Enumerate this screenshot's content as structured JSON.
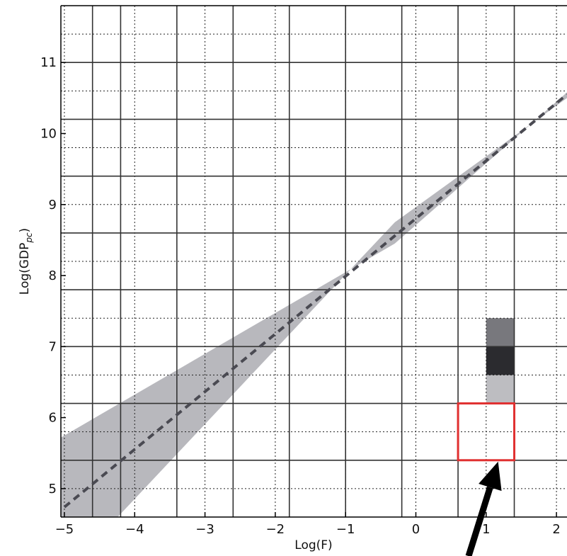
{
  "chart_data": {
    "type": "line",
    "xlabel": "Log(F)",
    "ylabel": "Log(GDP",
    "ylabel_sub": "pc",
    "ylabel_close": ")",
    "xlim": [
      -5.05,
      2.15
    ],
    "ylim": [
      4.6,
      11.8
    ],
    "x_ticks": [
      -5,
      -4,
      -3,
      -2,
      -1,
      0,
      1,
      2
    ],
    "x_tick_labels": [
      "−5",
      "−4",
      "−3",
      "−2",
      "−1",
      "0",
      "1",
      "2"
    ],
    "y_ticks": [
      5,
      6,
      7,
      8,
      9,
      10,
      11
    ],
    "y_tick_labels": [
      "5",
      "6",
      "7",
      "8",
      "9",
      "10",
      "11"
    ],
    "grid": {
      "solid_x": [
        -4.6,
        -4.2,
        -3.4,
        -2.6,
        -1.8,
        -1.0,
        -0.2,
        0.6,
        1.4
      ],
      "solid_y": [
        5.4,
        6.2,
        7.0,
        7.8,
        8.6,
        9.4,
        10.2,
        11.0
      ],
      "dotted_x": [
        -5.0,
        -4.0,
        -3.0,
        -2.0,
        -1.0,
        0.0,
        1.0,
        2.0
      ],
      "dotted_y": [
        5.0,
        5.8,
        6.6,
        7.4,
        8.2,
        9.0,
        9.8,
        10.6,
        11.4
      ]
    },
    "series": [
      {
        "style": "dashed",
        "color": "#4a4a52",
        "x": [
          -5.0,
          2.15
        ],
        "y": [
          4.74,
          10.55
        ]
      }
    ],
    "band": {
      "color": "#b8b8bd",
      "upper": {
        "x": [
          -5.05,
          -0.3,
          2.15
        ],
        "y": [
          5.72,
          8.45,
          10.58
        ]
      },
      "lower": {
        "x": [
          -5.05,
          -0.3,
          2.15
        ],
        "y": [
          3.75,
          8.75,
          10.5
        ]
      }
    },
    "cells": [
      {
        "x0": 1.0,
        "x1": 1.4,
        "y0": 7.0,
        "y1": 7.4,
        "color": "#78787d"
      },
      {
        "x0": 1.0,
        "x1": 1.4,
        "y0": 6.6,
        "y1": 7.0,
        "color": "#2b2b2f"
      },
      {
        "x0": 1.0,
        "x1": 1.4,
        "y0": 6.2,
        "y1": 6.6,
        "color": "#bdbdc1"
      }
    ],
    "highlight_box": {
      "x0": 0.6,
      "x1": 1.4,
      "y0": 5.4,
      "y1": 6.2,
      "color": "#e03030"
    },
    "arrow": {
      "color": "#000000",
      "from": {
        "x": 0.75,
        "y": 4.05
      },
      "to": {
        "x": 1.17,
        "y": 5.38
      }
    }
  }
}
